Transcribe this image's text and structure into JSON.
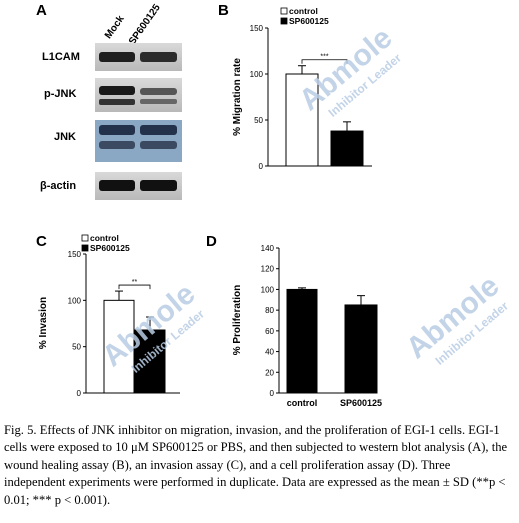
{
  "panels": {
    "a": {
      "letter": "A",
      "lanes": [
        "Mock",
        "SP600125"
      ],
      "rows": [
        "L1CAM",
        "p-JNK",
        "JNK",
        "β-actin"
      ]
    },
    "b": {
      "letter": "B"
    },
    "c": {
      "letter": "C"
    },
    "d": {
      "letter": "D"
    }
  },
  "watermark": {
    "brand": "Abmole",
    "tagline": "Inhibitor Leader"
  },
  "chart_data": [
    {
      "panel": "B",
      "type": "bar",
      "categories": [
        "control",
        "SP600125"
      ],
      "values": [
        100,
        38
      ],
      "errors": [
        9,
        10
      ],
      "colors": [
        "#ffffff",
        "#000000"
      ],
      "legend": [
        "control",
        "SP600125"
      ],
      "ylabel": "% Migration rate",
      "yticks": [
        0,
        50,
        100,
        150
      ],
      "ylim": [
        0,
        150
      ],
      "significance": "***",
      "show_xticklabels": false
    },
    {
      "panel": "C",
      "type": "bar",
      "categories": [
        "control",
        "SP600125"
      ],
      "values": [
        100,
        68
      ],
      "errors": [
        10,
        14
      ],
      "colors": [
        "#ffffff",
        "#000000"
      ],
      "legend": [
        "control",
        "SP600125"
      ],
      "ylabel": "% Invasion",
      "yticks": [
        0,
        50,
        100,
        150
      ],
      "ylim": [
        0,
        150
      ],
      "significance": "**",
      "show_xticklabels": false
    },
    {
      "panel": "D",
      "type": "bar",
      "categories": [
        "control",
        "SP600125"
      ],
      "values": [
        100,
        85
      ],
      "errors": [
        1.5,
        9
      ],
      "colors": [
        "#000000",
        "#000000"
      ],
      "legend": [],
      "ylabel": "% Proliferation",
      "yticks": [
        0,
        20,
        40,
        60,
        80,
        100,
        120,
        140
      ],
      "ylim": [
        0,
        140
      ],
      "significance": "",
      "show_xticklabels": true
    }
  ],
  "caption": "Fig. 5. Effects of JNK inhibitor on migration, invasion, and the proliferation of EGI-1 cells. EGI-1 cells were exposed to 10 μM SP600125 or PBS, and then subjected to western blot analysis (A), the wound healing assay (B), an invasion assay (C), and a cell proliferation assay (D). Three independent experiments were performed in duplicate. Data are expressed as the mean ± SD (**p < 0.01; *** p < 0.001)."
}
